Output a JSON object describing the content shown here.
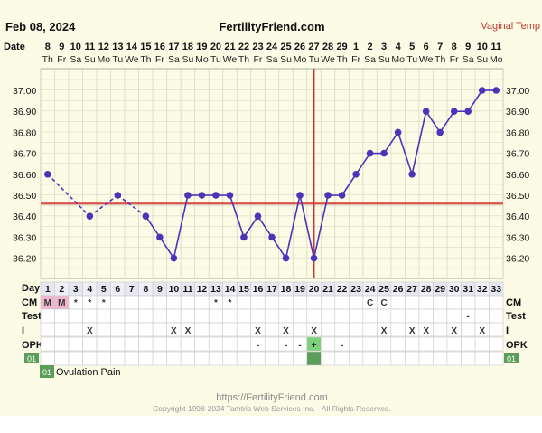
{
  "header": {
    "date": "Feb 08, 2024",
    "site": "FertilityFriend.com",
    "temp_type": "Vaginal Temp"
  },
  "rows": {
    "date_label": "Date",
    "day_label": "Day",
    "cm_label": "CM",
    "test_label": "Test",
    "i_label": "I",
    "opk_label": "OPK",
    "note_badge": "01"
  },
  "calendar": {
    "dates": [
      "8",
      "9",
      "10",
      "11",
      "12",
      "13",
      "14",
      "15",
      "16",
      "17",
      "18",
      "19",
      "20",
      "21",
      "22",
      "23",
      "24",
      "25",
      "26",
      "27",
      "28",
      "29",
      "1",
      "2",
      "3",
      "4",
      "5",
      "6",
      "7",
      "8",
      "9",
      "10",
      "11"
    ],
    "weekdays": [
      "Th",
      "Fr",
      "Sa",
      "Su",
      "Mo",
      "Tu",
      "We",
      "Th",
      "Fr",
      "Sa",
      "Su",
      "Mo",
      "Tu",
      "We",
      "Th",
      "Fr",
      "Sa",
      "Su",
      "Mo",
      "Tu",
      "We",
      "Th",
      "Fr",
      "Sa",
      "Su",
      "Mo",
      "Tu",
      "We",
      "Th",
      "Fr",
      "Sa",
      "Su",
      "Mo"
    ]
  },
  "chart_data": {
    "type": "line",
    "x": [
      1,
      2,
      3,
      4,
      5,
      6,
      7,
      8,
      9,
      10,
      11,
      12,
      13,
      14,
      15,
      16,
      17,
      18,
      19,
      20,
      21,
      22,
      23,
      24,
      25,
      26,
      27,
      28,
      29,
      30,
      31,
      32,
      33
    ],
    "y_ticks": [
      "37.00",
      "36.90",
      "36.80",
      "36.70",
      "36.60",
      "36.50",
      "36.40",
      "36.30",
      "36.20"
    ],
    "ylim": [
      36.15,
      37.05
    ],
    "coverline": 36.46,
    "ovulation_day": 20,
    "series": [
      {
        "values": [
          36.6,
          null,
          null,
          36.4,
          null,
          36.5,
          null,
          36.4,
          36.3,
          36.2,
          36.5,
          36.5,
          36.5,
          36.5,
          36.3,
          36.4,
          36.3,
          36.2,
          36.5,
          36.2,
          36.5,
          36.5,
          36.6,
          36.7,
          36.7,
          36.8,
          36.6,
          36.9,
          36.8,
          36.9,
          36.9,
          37.0,
          37.0
        ],
        "color": "#4a34b8"
      }
    ],
    "cm": [
      "M",
      "M",
      "*",
      "*",
      "*",
      "",
      "",
      "",
      "",
      "",
      "",
      "",
      "*",
      "*",
      "",
      "",
      "",
      "",
      "",
      "",
      "",
      "",
      "",
      "C",
      "C",
      "",
      "",
      "",
      "",
      "",
      "",
      "",
      ""
    ],
    "test": [
      "",
      "",
      "",
      "",
      "",
      "",
      "",
      "",
      "",
      "",
      "",
      "",
      "",
      "",
      "",
      "",
      "",
      "",
      "",
      "",
      "",
      "",
      "",
      "",
      "",
      "",
      "",
      "",
      "",
      "",
      "-",
      "",
      ""
    ],
    "intercourse": [
      "",
      "",
      "",
      "X",
      "",
      "",
      "",
      "",
      "",
      "X",
      "X",
      "",
      "",
      "",
      "",
      "X",
      "",
      "X",
      "",
      "X",
      "",
      "",
      "",
      "",
      "X",
      "",
      "X",
      "X",
      "",
      "X",
      "",
      "X",
      ""
    ],
    "opk": [
      "",
      "",
      "",
      "",
      "",
      "",
      "",
      "",
      "",
      "",
      "",
      "",
      "",
      "",
      "",
      "-",
      "",
      "-",
      "-",
      "+",
      "",
      "-",
      "",
      "",
      "",
      "",
      "",
      "",
      "",
      "",
      "",
      "",
      ""
    ],
    "colors": {
      "line": "#4a34b8",
      "coverline": "#d9534f",
      "ovulation_line": "#cc3333",
      "menstruation": "#f0b8cf",
      "opk_positive": "#7bd27b",
      "note_marker": "#5a9e5a",
      "plot_bg": "#fbfbe6",
      "grid": "#d8d8c4"
    }
  },
  "notes": {
    "badge": "01",
    "text": "Ovulation Pain"
  },
  "footer": {
    "url": "https://FertilityFriend.com",
    "copyright": "Copyright 1998-2024 Tamtris Web Services Inc. - All Rights Reserved."
  }
}
